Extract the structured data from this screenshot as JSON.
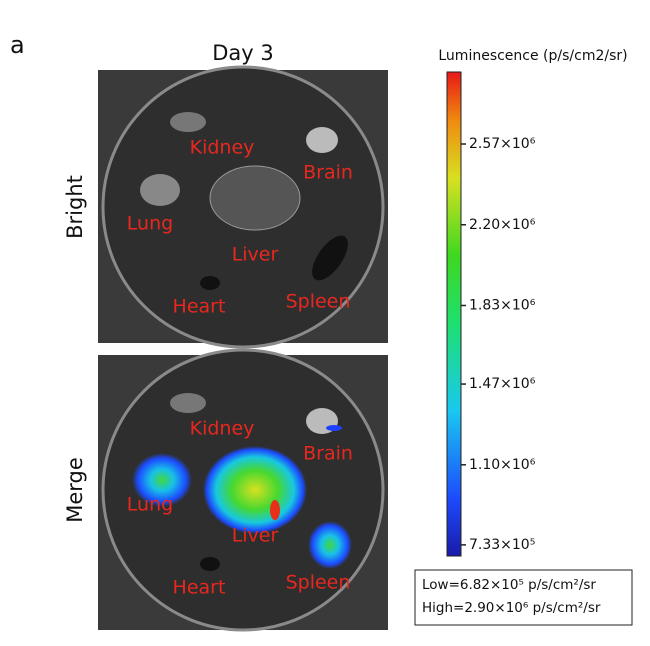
{
  "panel_label": "a",
  "title": "Day 3",
  "rows": [
    "Bright",
    "Merge"
  ],
  "organs": [
    "Kidney",
    "Brain",
    "Lung",
    "Liver",
    "Heart",
    "Spleen"
  ],
  "colorbar": {
    "title": "Luminescence (p/s/cm2/sr)",
    "lim": [
      682000,
      2900000
    ],
    "ticks": [
      {
        "value": 733000,
        "label": "7.33×10⁵"
      },
      {
        "value": 1100000,
        "label": "1.10×10⁶"
      },
      {
        "value": 1470000,
        "label": "1.47×10⁶"
      },
      {
        "value": 1830000,
        "label": "1.83×10⁶"
      },
      {
        "value": 2200000,
        "label": "2.20×10⁶"
      },
      {
        "value": 2570000,
        "label": "2.57×10⁶"
      }
    ]
  },
  "range_box": [
    "Low=6.82×10⁵ p/s/cm²/sr",
    "High=2.90×10⁶ p/s/cm²/sr"
  ]
}
